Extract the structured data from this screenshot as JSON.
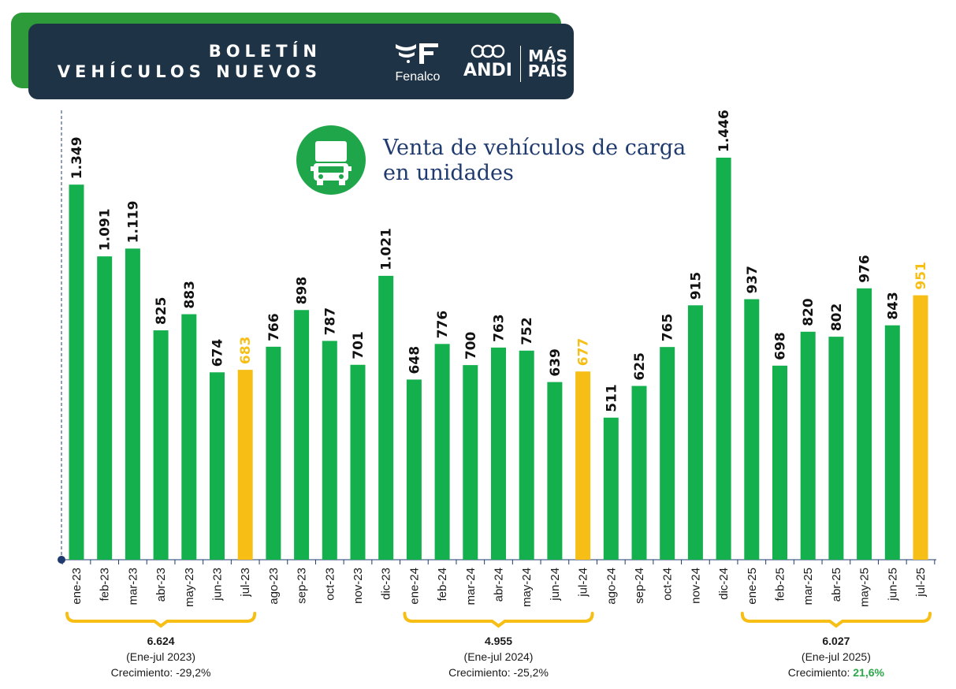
{
  "header": {
    "title_line1": "BOLETÍN",
    "title_line2": "VEHÍCULOS NUEVOS",
    "logos": [
      "Fenalco",
      "ANDI",
      "MÁS",
      "PAÍS"
    ]
  },
  "chart_title": {
    "line1": "Venta de vehículos de carga",
    "line2": "en unidades",
    "icon": "truck-icon"
  },
  "colors": {
    "bar": "#14b04e",
    "highlight": "#f7bf16",
    "header_bg": "#1f3346",
    "accent_green": "#2e9b3a",
    "title_text": "#1f3a6e"
  },
  "chart_data": {
    "type": "bar",
    "title": "Venta de vehículos de carga en unidades",
    "xlabel": "",
    "ylabel": "",
    "ylim": [
      0,
      1446
    ],
    "categories": [
      "ene-23",
      "feb-23",
      "mar-23",
      "abr-23",
      "may-23",
      "jun-23",
      "jul-23",
      "ago-23",
      "sep-23",
      "oct-23",
      "nov-23",
      "dic-23",
      "ene-24",
      "feb-24",
      "mar-24",
      "abr-24",
      "may-24",
      "jun-24",
      "jul-24",
      "ago-24",
      "sep-24",
      "oct-24",
      "nov-24",
      "dic-24",
      "ene-25",
      "feb-25",
      "mar-25",
      "abr-25",
      "may-25",
      "jun-25",
      "jul-25"
    ],
    "values": [
      1349,
      1091,
      1119,
      825,
      883,
      674,
      683,
      766,
      898,
      787,
      701,
      1021,
      648,
      776,
      700,
      763,
      752,
      639,
      677,
      511,
      625,
      765,
      915,
      1446,
      937,
      698,
      820,
      802,
      976,
      843,
      951
    ],
    "value_labels": [
      "1.349",
      "1.091",
      "1.119",
      "825",
      "883",
      "674",
      "683",
      "766",
      "898",
      "787",
      "701",
      "1.021",
      "648",
      "776",
      "700",
      "763",
      "752",
      "639",
      "677",
      "511",
      "625",
      "765",
      "915",
      "1.446",
      "937",
      "698",
      "820",
      "802",
      "976",
      "843",
      "951"
    ],
    "highlighted": [
      "jul-23",
      "jul-24",
      "jul-25"
    ]
  },
  "summaries": [
    {
      "total": "6.624",
      "period": "(Ene-jul 2023)",
      "growth_label": "Crecimiento: ",
      "growth_value": "-29,2%",
      "start_index": 0,
      "end_index": 6
    },
    {
      "total": "4.955",
      "period": "(Ene-jul 2024)",
      "growth_label": "Crecimiento: ",
      "growth_value": "-25,2%",
      "start_index": 12,
      "end_index": 18
    },
    {
      "total": "6.027",
      "period": "(Ene-jul 2025)",
      "growth_label": "Crecimiento: ",
      "growth_value": "21,6%",
      "start_index": 24,
      "end_index": 30
    }
  ]
}
